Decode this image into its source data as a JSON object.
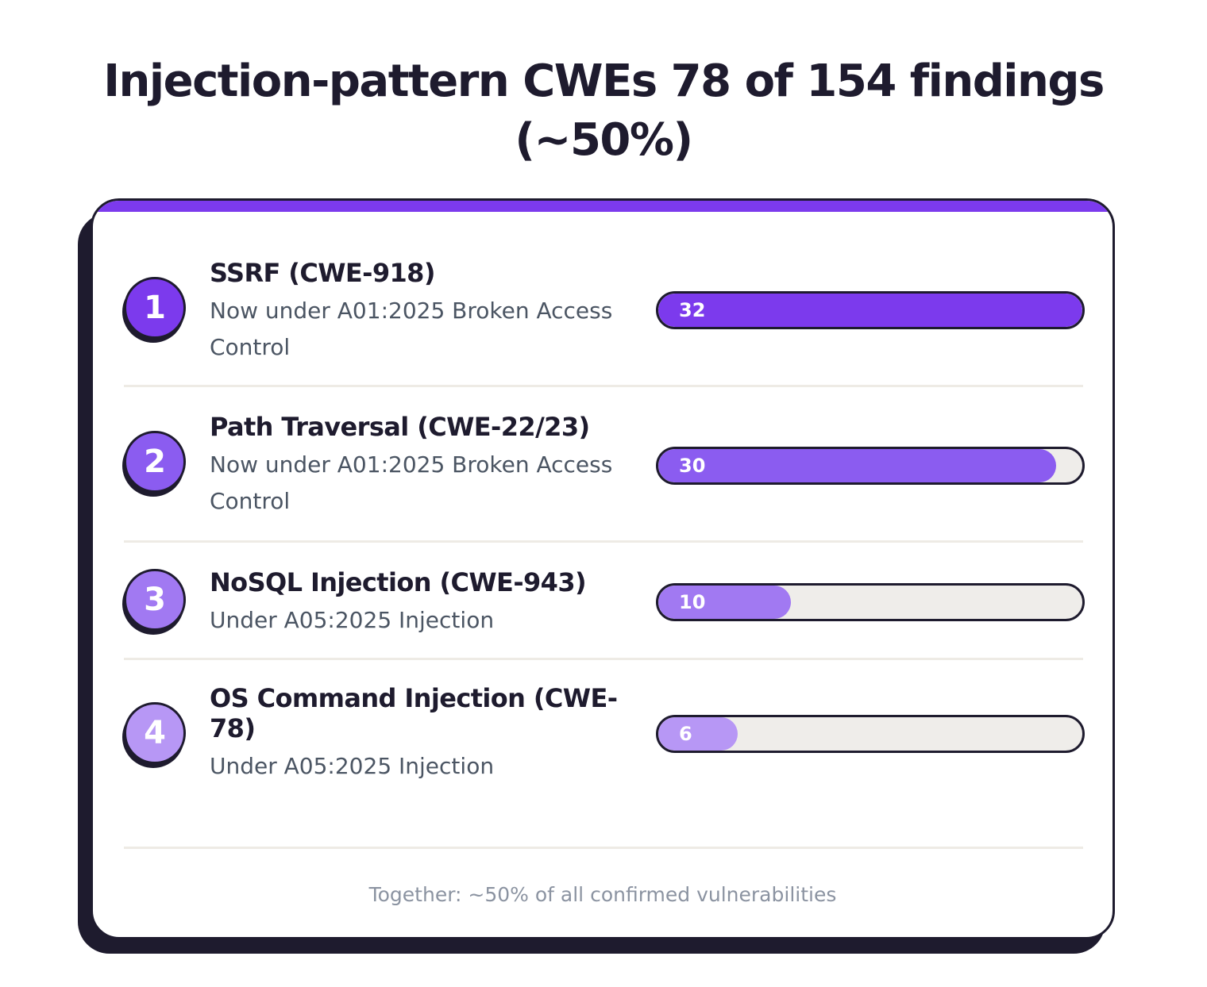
{
  "title": "Injection-pattern CWEs 78 of 154 findings (~50%)",
  "footer": "Together: ~50% of all confirmed vulnerabilities",
  "colors": {
    "accent": "#7c3aed",
    "ink": "#1e1b2e",
    "track": "#efedea",
    "subtext": "#4b5563",
    "footer": "#8b93a1"
  },
  "chart_data": {
    "type": "bar",
    "orientation": "horizontal",
    "title": "Injection-pattern CWEs 78 of 154 findings (~50%)",
    "xlim": [
      0,
      32
    ],
    "items": [
      {
        "rank": "1",
        "label": "SSRF (CWE-918)",
        "subtitle": "Now under A01:2025 Broken Access Control",
        "value": 32,
        "color": "#7c3aed"
      },
      {
        "rank": "2",
        "label": "Path Traversal (CWE-22/23)",
        "subtitle": "Now under A01:2025 Broken Access Control",
        "value": 30,
        "color": "#8b5cf0"
      },
      {
        "rank": "3",
        "label": "NoSQL Injection (CWE-943)",
        "subtitle": "Under A05:2025 Injection",
        "value": 10,
        "color": "#a179f2"
      },
      {
        "rank": "4",
        "label": "OS Command Injection (CWE-78)",
        "subtitle": "Under A05:2025 Injection",
        "value": 6,
        "color": "#b797f5"
      }
    ]
  }
}
